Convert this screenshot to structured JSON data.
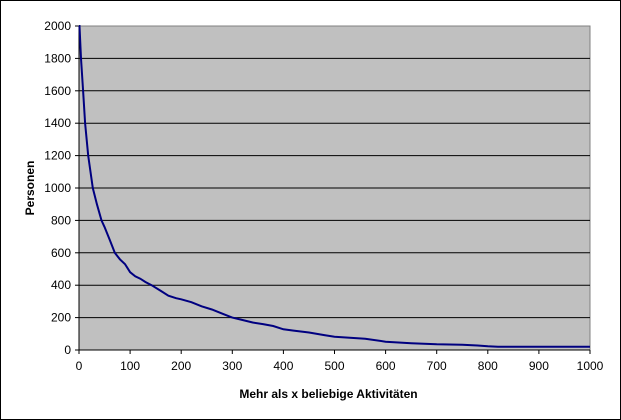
{
  "chart_data": {
    "type": "line",
    "title": "",
    "xlabel": "Mehr als x beliebige Aktivitäten",
    "ylabel": "Personen",
    "xlim": [
      0,
      1000
    ],
    "ylim": [
      0,
      2000
    ],
    "x_ticks": [
      0,
      100,
      200,
      300,
      400,
      500,
      600,
      700,
      800,
      900,
      1000
    ],
    "y_ticks": [
      0,
      200,
      400,
      600,
      800,
      1000,
      1200,
      1400,
      1600,
      1800,
      2000
    ],
    "grid": {
      "horizontal": true,
      "vertical": false
    },
    "legend": null,
    "series": [
      {
        "name": "Personen",
        "color": "#000080",
        "x": [
          0,
          1,
          4,
          8,
          12,
          18,
          27,
          35,
          44,
          50,
          60,
          70,
          80,
          90,
          100,
          110,
          120,
          130,
          142,
          160,
          175,
          190,
          200,
          220,
          240,
          260,
          280,
          296,
          300,
          320,
          340,
          360,
          380,
          400,
          420,
          450,
          480,
          500,
          530,
          560,
          600,
          650,
          700,
          750,
          780,
          800,
          820,
          900,
          1000
        ],
        "values": [
          2000,
          2000,
          1800,
          1600,
          1400,
          1200,
          1000,
          900,
          800,
          760,
          680,
          600,
          560,
          530,
          480,
          455,
          440,
          420,
          400,
          365,
          335,
          320,
          313,
          295,
          270,
          250,
          225,
          205,
          200,
          185,
          170,
          160,
          148,
          128,
          120,
          108,
          92,
          82,
          76,
          70,
          51,
          42,
          35,
          32,
          28,
          23,
          20,
          20,
          20
        ]
      }
    ]
  },
  "colors": {
    "plot_background": "#C0C0C0",
    "plot_border": "#808080",
    "gridline": "#000000",
    "line": "#000080",
    "chart_background": "#FFFFFF"
  }
}
